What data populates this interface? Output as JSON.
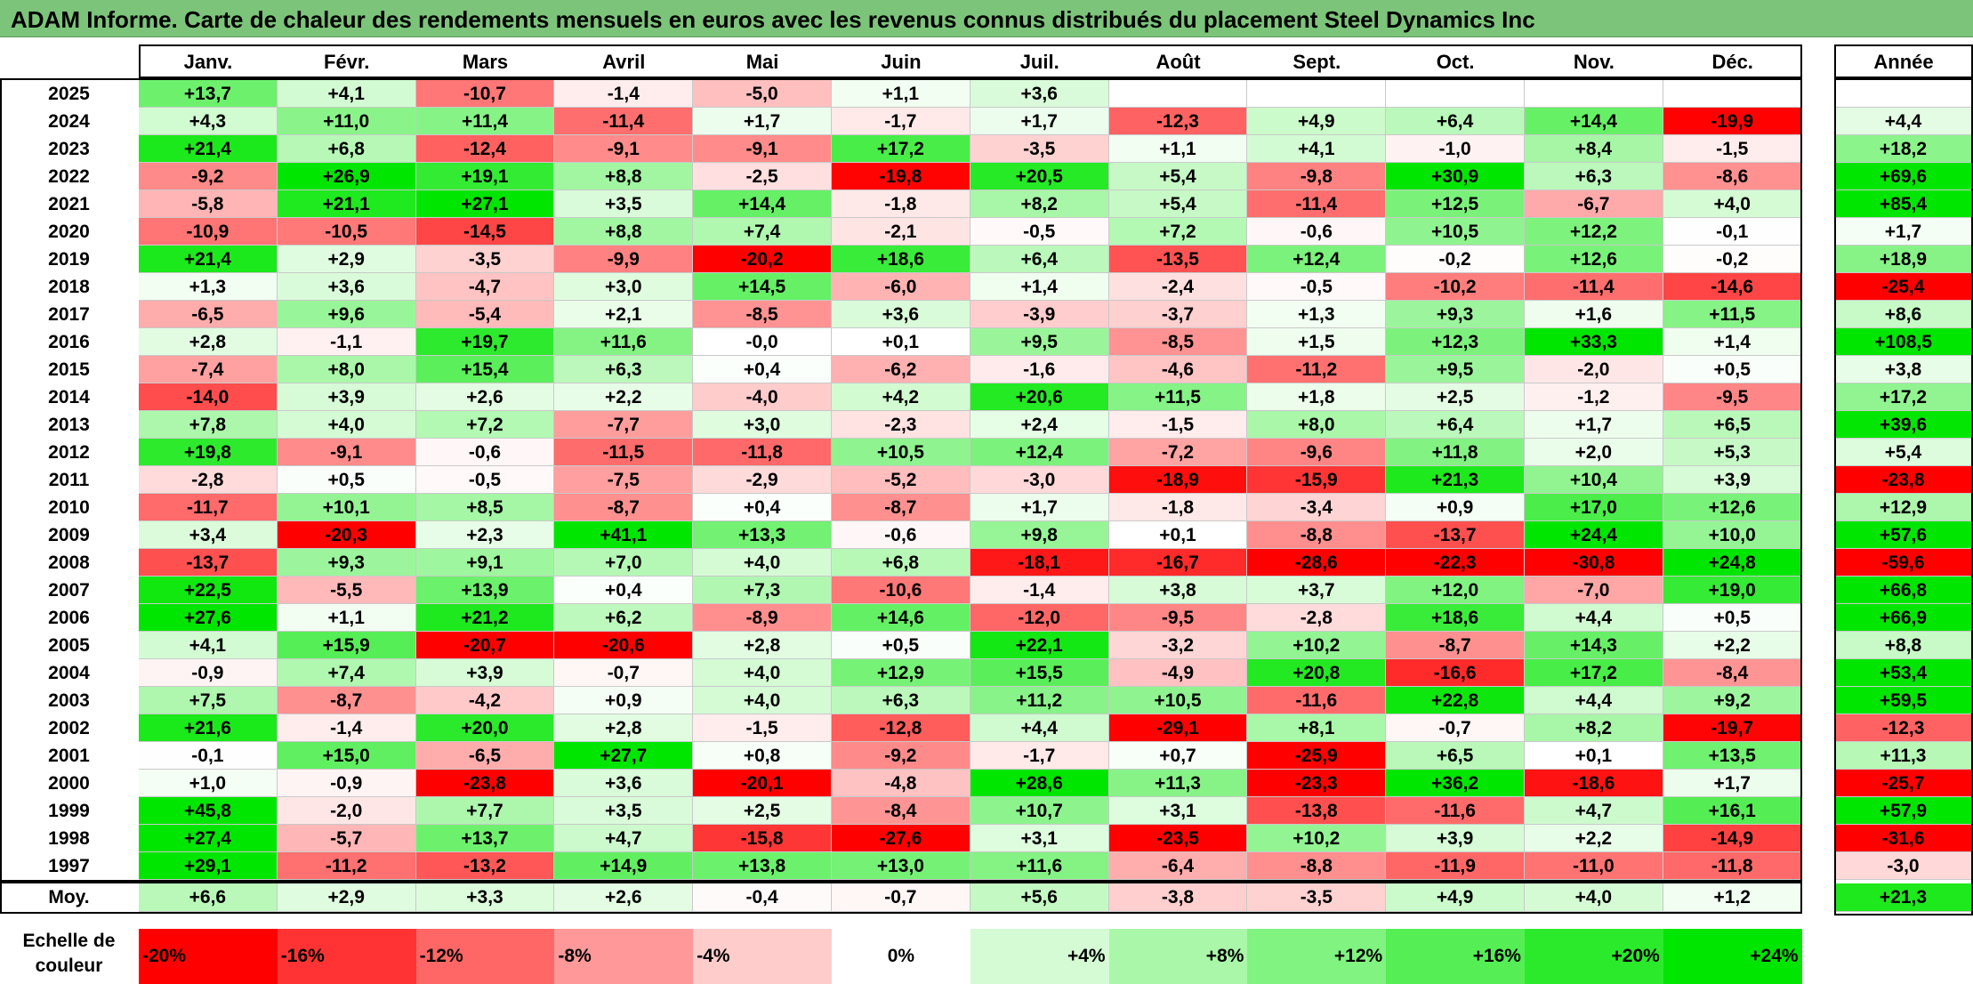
{
  "title": "ADAM Informe. Carte de chaleur des rendements mensuels en euros avec les revenus connus distribués du placement Steel Dynamics Inc",
  "chart_data": {
    "type": "heatmap",
    "title": "ADAM Informe. Carte de chaleur des rendements mensuels en euros avec les revenus connus distribués du placement Steel Dynamics Inc",
    "months": [
      "Janv.",
      "Févr.",
      "Mars",
      "Avril",
      "Mai",
      "Juin",
      "Juil.",
      "Août",
      "Sept.",
      "Oct.",
      "Nov.",
      "Déc."
    ],
    "year_header": "Année",
    "rows": [
      {
        "year": "2025",
        "values": [
          "+13,7",
          "+4,1",
          "-10,7",
          "-1,4",
          "-5,0",
          "+1,1",
          "+3,6",
          "",
          "",
          "",
          "",
          ""
        ],
        "annual": ""
      },
      {
        "year": "2024",
        "values": [
          "+4,3",
          "+11,0",
          "+11,4",
          "-11,4",
          "+1,7",
          "-1,7",
          "+1,7",
          "-12,3",
          "+4,9",
          "+6,4",
          "+14,4",
          "-19,9"
        ],
        "annual": "+4,4"
      },
      {
        "year": "2023",
        "values": [
          "+21,4",
          "+6,8",
          "-12,4",
          "-9,1",
          "-9,1",
          "+17,2",
          "-3,5",
          "+1,1",
          "+4,1",
          "-1,0",
          "+8,4",
          "-1,5"
        ],
        "annual": "+18,2"
      },
      {
        "year": "2022",
        "values": [
          "-9,2",
          "+26,9",
          "+19,1",
          "+8,8",
          "-2,5",
          "-19,8",
          "+20,5",
          "+5,4",
          "-9,8",
          "+30,9",
          "+6,3",
          "-8,6"
        ],
        "annual": "+69,6"
      },
      {
        "year": "2021",
        "values": [
          "-5,8",
          "+21,1",
          "+27,1",
          "+3,5",
          "+14,4",
          "-1,8",
          "+8,2",
          "+5,4",
          "-11,4",
          "+12,5",
          "-6,7",
          "+4,0"
        ],
        "annual": "+85,4"
      },
      {
        "year": "2020",
        "values": [
          "-10,9",
          "-10,5",
          "-14,5",
          "+8,8",
          "+7,4",
          "-2,1",
          "-0,5",
          "+7,2",
          "-0,6",
          "+10,5",
          "+12,2",
          "-0,1"
        ],
        "annual": "+1,7"
      },
      {
        "year": "2019",
        "values": [
          "+21,4",
          "+2,9",
          "-3,5",
          "-9,9",
          "-20,2",
          "+18,6",
          "+6,4",
          "-13,5",
          "+12,4",
          "-0,2",
          "+12,6",
          "-0,2"
        ],
        "annual": "+18,9"
      },
      {
        "year": "2018",
        "values": [
          "+1,3",
          "+3,6",
          "-4,7",
          "+3,0",
          "+14,5",
          "-6,0",
          "+1,4",
          "-2,4",
          "-0,5",
          "-10,2",
          "-11,4",
          "-14,6"
        ],
        "annual": "-25,4"
      },
      {
        "year": "2017",
        "values": [
          "-6,5",
          "+9,6",
          "-5,4",
          "+2,1",
          "-8,5",
          "+3,6",
          "-3,9",
          "-3,7",
          "+1,3",
          "+9,3",
          "+1,6",
          "+11,5"
        ],
        "annual": "+8,6"
      },
      {
        "year": "2016",
        "values": [
          "+2,8",
          "-1,1",
          "+19,7",
          "+11,6",
          "-0,0",
          "+0,1",
          "+9,5",
          "-8,5",
          "+1,5",
          "+12,3",
          "+33,3",
          "+1,4"
        ],
        "annual": "+108,5"
      },
      {
        "year": "2015",
        "values": [
          "-7,4",
          "+8,0",
          "+15,4",
          "+6,3",
          "+0,4",
          "-6,2",
          "-1,6",
          "-4,6",
          "-11,2",
          "+9,5",
          "-2,0",
          "+0,5"
        ],
        "annual": "+3,8"
      },
      {
        "year": "2014",
        "values": [
          "-14,0",
          "+3,9",
          "+2,6",
          "+2,2",
          "-4,0",
          "+4,2",
          "+20,6",
          "+11,5",
          "+1,8",
          "+2,5",
          "-1,2",
          "-9,5"
        ],
        "annual": "+17,2"
      },
      {
        "year": "2013",
        "values": [
          "+7,8",
          "+4,0",
          "+7,2",
          "-7,7",
          "+3,0",
          "-2,3",
          "+2,4",
          "-1,5",
          "+8,0",
          "+6,4",
          "+1,7",
          "+6,5"
        ],
        "annual": "+39,6"
      },
      {
        "year": "2012",
        "values": [
          "+19,8",
          "-9,1",
          "-0,6",
          "-11,5",
          "-11,8",
          "+10,5",
          "+12,4",
          "-7,2",
          "-9,6",
          "+11,8",
          "+2,0",
          "+5,3"
        ],
        "annual": "+5,4"
      },
      {
        "year": "2011",
        "values": [
          "-2,8",
          "+0,5",
          "-0,5",
          "-7,5",
          "-2,9",
          "-5,2",
          "-3,0",
          "-18,9",
          "-15,9",
          "+21,3",
          "+10,4",
          "+3,9"
        ],
        "annual": "-23,8"
      },
      {
        "year": "2010",
        "values": [
          "-11,7",
          "+10,1",
          "+8,5",
          "-8,7",
          "+0,4",
          "-8,7",
          "+1,7",
          "-1,8",
          "-3,4",
          "+0,9",
          "+17,0",
          "+12,6"
        ],
        "annual": "+12,9"
      },
      {
        "year": "2009",
        "values": [
          "+3,4",
          "-20,3",
          "+2,3",
          "+41,1",
          "+13,3",
          "-0,6",
          "+9,8",
          "+0,1",
          "-8,8",
          "-13,7",
          "+24,4",
          "+10,0"
        ],
        "annual": "+57,6"
      },
      {
        "year": "2008",
        "values": [
          "-13,7",
          "+9,3",
          "+9,1",
          "+7,0",
          "+4,0",
          "+6,8",
          "-18,1",
          "-16,7",
          "-28,6",
          "-22,3",
          "-30,8",
          "+24,8"
        ],
        "annual": "-59,6"
      },
      {
        "year": "2007",
        "values": [
          "+22,5",
          "-5,5",
          "+13,9",
          "+0,4",
          "+7,3",
          "-10,6",
          "-1,4",
          "+3,8",
          "+3,7",
          "+12,0",
          "-7,0",
          "+19,0"
        ],
        "annual": "+66,8"
      },
      {
        "year": "2006",
        "values": [
          "+27,6",
          "+1,1",
          "+21,2",
          "+6,2",
          "-8,9",
          "+14,6",
          "-12,0",
          "-9,5",
          "-2,8",
          "+18,6",
          "+4,4",
          "+0,5"
        ],
        "annual": "+66,9"
      },
      {
        "year": "2005",
        "values": [
          "+4,1",
          "+15,9",
          "-20,7",
          "-20,6",
          "+2,8",
          "+0,5",
          "+22,1",
          "-3,2",
          "+10,2",
          "-8,7",
          "+14,3",
          "+2,2"
        ],
        "annual": "+8,8"
      },
      {
        "year": "2004",
        "values": [
          "-0,9",
          "+7,4",
          "+3,9",
          "-0,7",
          "+4,0",
          "+12,9",
          "+15,5",
          "-4,9",
          "+20,8",
          "-16,6",
          "+17,2",
          "-8,4"
        ],
        "annual": "+53,4"
      },
      {
        "year": "2003",
        "values": [
          "+7,5",
          "-8,7",
          "-4,2",
          "+0,9",
          "+4,0",
          "+6,3",
          "+11,2",
          "+10,5",
          "-11,6",
          "+22,8",
          "+4,4",
          "+9,2"
        ],
        "annual": "+59,5"
      },
      {
        "year": "2002",
        "values": [
          "+21,6",
          "-1,4",
          "+20,0",
          "+2,8",
          "-1,5",
          "-12,8",
          "+4,4",
          "-29,1",
          "+8,1",
          "-0,7",
          "+8,2",
          "-19,7"
        ],
        "annual": "-12,3"
      },
      {
        "year": "2001",
        "values": [
          "-0,1",
          "+15,0",
          "-6,5",
          "+27,7",
          "+0,8",
          "-9,2",
          "-1,7",
          "+0,7",
          "-25,9",
          "+6,5",
          "+0,1",
          "+13,5"
        ],
        "annual": "+11,3"
      },
      {
        "year": "2000",
        "values": [
          "+1,0",
          "-0,9",
          "-23,8",
          "+3,6",
          "-20,1",
          "-4,8",
          "+28,6",
          "+11,3",
          "-23,3",
          "+36,2",
          "-18,6",
          "+1,7"
        ],
        "annual": "-25,7"
      },
      {
        "year": "1999",
        "values": [
          "+45,8",
          "-2,0",
          "+7,7",
          "+3,5",
          "+2,5",
          "-8,4",
          "+10,7",
          "+3,1",
          "-13,8",
          "-11,6",
          "+4,7",
          "+16,1"
        ],
        "annual": "+57,9"
      },
      {
        "year": "1998",
        "values": [
          "+27,4",
          "-5,7",
          "+13,7",
          "+4,7",
          "-15,8",
          "-27,6",
          "+3,1",
          "-23,5",
          "+10,2",
          "+3,9",
          "+2,2",
          "-14,9"
        ],
        "annual": "-31,6"
      },
      {
        "year": "1997",
        "values": [
          "+29,1",
          "-11,2",
          "-13,2",
          "+14,9",
          "+13,8",
          "+13,0",
          "+11,6",
          "-6,4",
          "-8,8",
          "-11,9",
          "-11,0",
          "-11,8"
        ],
        "annual": "-3,0"
      }
    ],
    "average": {
      "label": "Moy.",
      "values": [
        "+6,6",
        "+2,9",
        "+3,3",
        "+2,6",
        "-0,4",
        "-0,7",
        "+5,6",
        "-3,8",
        "-3,5",
        "+4,9",
        "+4,0",
        "+1,2"
      ],
      "annual": "+21,3"
    },
    "scale_label": "Echelle de couleur",
    "scale": [
      {
        "label": "-20%",
        "value": -20
      },
      {
        "label": "-16%",
        "value": -16
      },
      {
        "label": "-12%",
        "value": -12
      },
      {
        "label": "-8%",
        "value": -8
      },
      {
        "label": "-4%",
        "value": -4
      },
      {
        "label": "0%",
        "value": 0
      },
      {
        "label": "+4%",
        "value": 4
      },
      {
        "label": "+8%",
        "value": 8
      },
      {
        "label": "+12%",
        "value": 12
      },
      {
        "label": "+16%",
        "value": 16
      },
      {
        "label": "+20%",
        "value": 20
      },
      {
        "label": "+24%",
        "value": 24
      }
    ],
    "colors": {
      "negative": "#ff0000",
      "neutral": "#ffffff",
      "positive": "#00e600",
      "title_bar": "#7cc47a"
    }
  }
}
